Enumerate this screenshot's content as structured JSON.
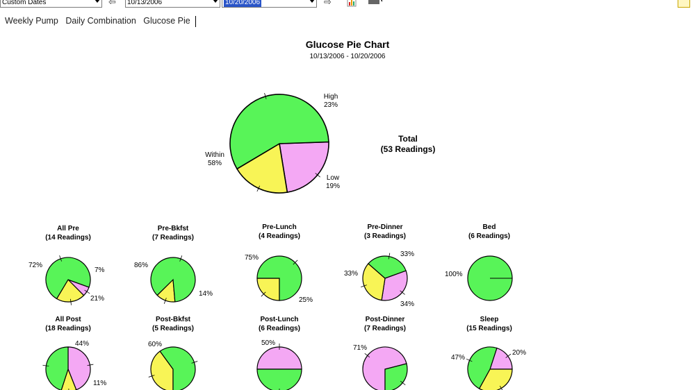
{
  "toolbar": {
    "range_select": "Custom Dates",
    "start_date": "10/13/2006",
    "end_date": "10/20/2006"
  },
  "tabs": [
    "Weekly Pump",
    "Daily Combination",
    "Glucose Pie"
  ],
  "chart": {
    "title": "Glucose Pie Chart",
    "subtitle": "10/13/2006 - 10/20/2006",
    "total_title": "Total",
    "total_count": "(53 Readings)"
  },
  "colors": {
    "within": "#58f458",
    "high": "#f4a8f4",
    "low": "#f8f456"
  },
  "chart_data": [
    {
      "type": "pie",
      "title": "Total",
      "subtitle": "(53 Readings)",
      "slices": [
        {
          "name": "High",
          "value": 23,
          "label": "23%",
          "color": "#f4a8f4"
        },
        {
          "name": "Low",
          "value": 19,
          "label": "19%",
          "color": "#f8f456"
        },
        {
          "name": "Within",
          "value": 58,
          "label": "58%",
          "color": "#58f458"
        }
      ]
    },
    {
      "type": "pie",
      "title": "All Pre",
      "subtitle": "(14 Readings)",
      "slices": [
        {
          "value": 7,
          "label": "7%",
          "color": "#f4a8f4"
        },
        {
          "value": 21,
          "label": "21%",
          "color": "#f8f456"
        },
        {
          "value": 72,
          "label": "72%",
          "color": "#58f458"
        }
      ]
    },
    {
      "type": "pie",
      "title": "Pre-Bkfst",
      "subtitle": "(7 Readings)",
      "slices": [
        {
          "value": 14,
          "label": "14%",
          "color": "#f8f456"
        },
        {
          "value": 86,
          "label": "86%",
          "color": "#58f458"
        }
      ]
    },
    {
      "type": "pie",
      "title": "Pre-Lunch",
      "subtitle": "(4 Readings)",
      "slices": [
        {
          "value": 25,
          "label": "25%",
          "color": "#f8f456"
        },
        {
          "value": 75,
          "label": "75%",
          "color": "#58f458"
        }
      ]
    },
    {
      "type": "pie",
      "title": "Pre-Dinner",
      "subtitle": "(3 Readings)",
      "slices": [
        {
          "value": 33,
          "label": "33%",
          "color": "#f4a8f4"
        },
        {
          "value": 34,
          "label": "34%",
          "color": "#f8f456"
        },
        {
          "value": 33,
          "label": "33%",
          "color": "#58f458"
        }
      ]
    },
    {
      "type": "pie",
      "title": "Bed",
      "subtitle": "(6 Readings)",
      "slices": [
        {
          "value": 100,
          "label": "100%",
          "color": "#58f458"
        }
      ]
    },
    {
      "type": "pie",
      "title": "All Post",
      "subtitle": "(18 Readings)",
      "slices": [
        {
          "value": 44,
          "label": "44%",
          "color": "#f4a8f4"
        },
        {
          "value": 11,
          "label": "11%",
          "color": "#f8f456"
        },
        {
          "value": 45,
          "label": "",
          "color": "#58f458"
        }
      ]
    },
    {
      "type": "pie",
      "title": "Post-Bkfst",
      "subtitle": "(5 Readings)",
      "slices": [
        {
          "value": 40,
          "label": "",
          "color": "#f8f456"
        },
        {
          "value": 60,
          "label": "60%",
          "color": "#58f458"
        }
      ]
    },
    {
      "type": "pie",
      "title": "Post-Lunch",
      "subtitle": "(6 Readings)",
      "slices": [
        {
          "value": 50,
          "label": "50%",
          "color": "#f4a8f4"
        },
        {
          "value": 50,
          "label": "",
          "color": "#58f458"
        }
      ]
    },
    {
      "type": "pie",
      "title": "Post-Dinner",
      "subtitle": "(7 Readings)",
      "slices": [
        {
          "value": 71,
          "label": "71%",
          "color": "#f4a8f4"
        },
        {
          "value": 29,
          "label": "",
          "color": "#58f458"
        }
      ]
    },
    {
      "type": "pie",
      "title": "Sleep",
      "subtitle": "(15 Readings)",
      "slices": [
        {
          "value": 20,
          "label": "20%",
          "color": "#f4a8f4"
        },
        {
          "value": 33,
          "label": "",
          "color": "#f8f456"
        },
        {
          "value": 47,
          "label": "47%",
          "color": "#58f458"
        }
      ]
    }
  ]
}
